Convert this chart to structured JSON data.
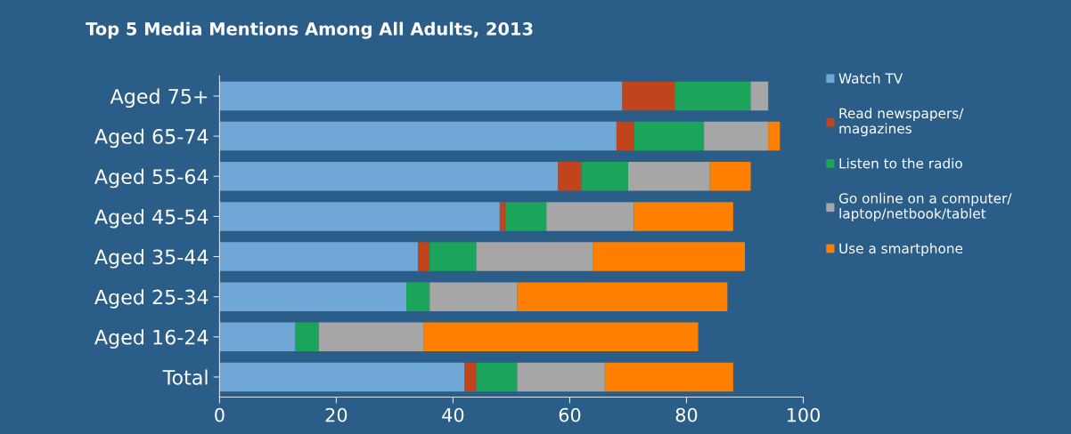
{
  "chart_data": {
    "type": "bar",
    "orientation": "horizontal",
    "stacked": true,
    "title": "Top 5 Media Mentions Among All Adults, 2013",
    "categories": [
      "Aged 75+",
      "Aged 65-74",
      "Aged 55-64",
      "Aged 45-54",
      "Aged 35-44",
      "Aged 25-34",
      "Aged 16-24",
      "Total"
    ],
    "series": [
      {
        "name": "Watch TV",
        "color": "#6fa8d6",
        "values": [
          69,
          68,
          58,
          48,
          34,
          32,
          13,
          42
        ]
      },
      {
        "name": "Read newspapers/\nmagazines",
        "color": "#c0441c",
        "values": [
          9,
          3,
          4,
          1,
          2,
          0,
          0,
          2
        ]
      },
      {
        "name": "Listen to the radio",
        "color": "#1aa55a",
        "values": [
          13,
          12,
          8,
          7,
          8,
          4,
          4,
          7
        ]
      },
      {
        "name": "Go online on a computer/\nlaptop/netbook/tablet",
        "color": "#a6a6a6",
        "values": [
          3,
          11,
          14,
          15,
          20,
          15,
          18,
          15
        ]
      },
      {
        "name": "Use a smartphone",
        "color": "#ff8000",
        "values": [
          0,
          2,
          7,
          17,
          26,
          36,
          47,
          22
        ]
      }
    ],
    "xlim": [
      0,
      100
    ],
    "xticks": [
      0,
      20,
      40,
      60,
      80,
      100
    ],
    "grid": false,
    "legend": "right"
  }
}
